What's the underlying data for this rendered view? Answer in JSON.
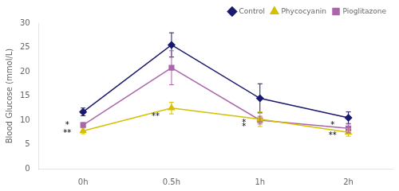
{
  "chart_data": {
    "type": "line",
    "categories": [
      "0h",
      "0.5h",
      "1h",
      "2h"
    ],
    "series": [
      {
        "name": "Control",
        "color": "#1a1a6e",
        "marker": "diamond",
        "values": [
          11.7,
          25.5,
          14.5,
          10.5
        ],
        "yerr": [
          0.8,
          2.5,
          3.0,
          1.2
        ]
      },
      {
        "name": "Phycocyanin",
        "color": "#d4c000",
        "marker": "triangle",
        "values": [
          7.8,
          12.5,
          10.2,
          7.5
        ],
        "yerr": [
          0.6,
          1.2,
          1.5,
          0.8
        ]
      },
      {
        "name": "Pioglitazone",
        "color": "#aa66aa",
        "marker": "square",
        "values": [
          9.0,
          20.8,
          10.0,
          8.3
        ],
        "yerr": [
          0.5,
          3.5,
          0.8,
          0.9
        ]
      }
    ],
    "ylabel": "Blood Glucose (mmol/L)",
    "ylim": [
      0,
      30
    ],
    "yticks": [
      0,
      5,
      10,
      15,
      20,
      25,
      30
    ],
    "grid": false,
    "legend": "upper right",
    "annotations": [
      {
        "text": "*",
        "x": "0h",
        "y": 8.9
      },
      {
        "text": "**",
        "x": "0h",
        "y": 7.3
      },
      {
        "text": "**",
        "x": "0.5h",
        "y": 10.8
      },
      {
        "text": "*",
        "x": "1h",
        "y": 9.5
      },
      {
        "text": "*",
        "x": "1h",
        "y": 8.6
      },
      {
        "text": "*",
        "x": "2h",
        "y": 9.0
      },
      {
        "text": "**",
        "x": "2h",
        "y": 6.8
      }
    ]
  }
}
